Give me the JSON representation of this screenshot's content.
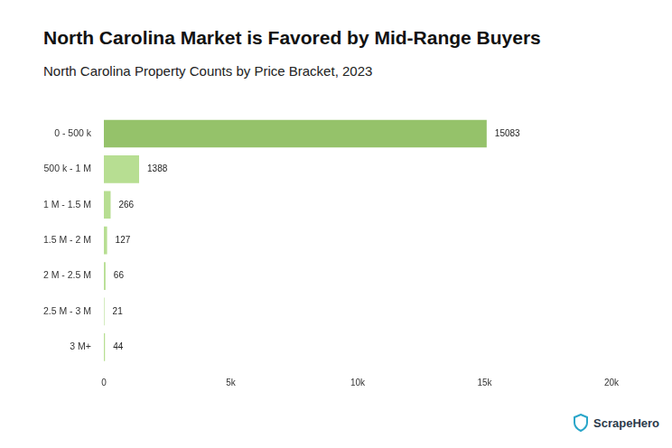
{
  "chart_data": {
    "type": "bar",
    "title": "North Carolina Market is Favored by Mid-Range Buyers",
    "subtitle": "North Carolina Property Counts by Price Bracket, 2023",
    "categories": [
      "0 - 500 k",
      "500 k - 1 M",
      "1 M - 1.5 M",
      "1.5 M - 2 M",
      "2 M - 2.5 M",
      "2.5 M - 3 M",
      "3 M+"
    ],
    "values": [
      15083,
      1388,
      266,
      127,
      66,
      21,
      44
    ],
    "colors": [
      "#95c26a",
      "#b7de92",
      "#b7de92",
      "#b7de92",
      "#b7de92",
      "#b7de92",
      "#b7de92"
    ],
    "orientation": "horizontal",
    "xlim": [
      0,
      20000
    ],
    "xticks": [
      0,
      {
        "value": 5000,
        "label": "5k"
      },
      {
        "value": 10000,
        "label": "10k"
      },
      {
        "value": 15000,
        "label": "15k"
      },
      {
        "value": 20000,
        "label": "20k"
      }
    ],
    "grid": false,
    "data_labels": true,
    "annotations": [
      "ScrapeHero"
    ]
  }
}
